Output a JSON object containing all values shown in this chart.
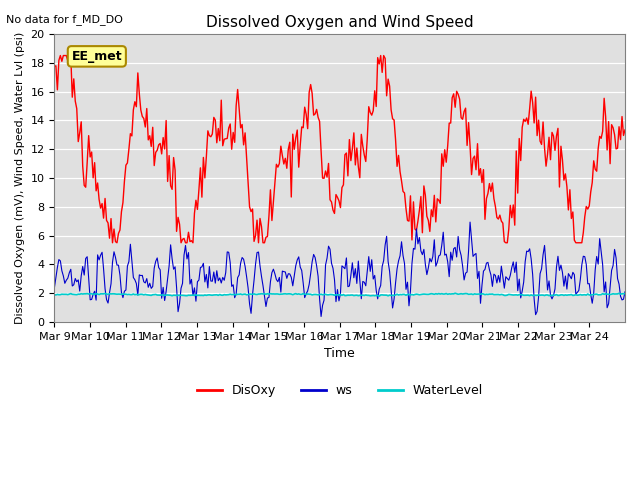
{
  "title": "Dissolved Oxygen and Wind Speed",
  "subtitle": "No data for f_MD_DO",
  "xlabel": "Time",
  "ylabel": "Dissolved Oxygen (mV), Wind Speed, Water Lvl (psi)",
  "ylim": [
    0,
    20
  ],
  "x_tick_labels": [
    "Mar 9",
    "Mar 10",
    "Mar 11",
    "Mar 12",
    "Mar 13",
    "Mar 14",
    "Mar 15",
    "Mar 16",
    "Mar 17",
    "Mar 18",
    "Mar 19",
    "Mar 20",
    "Mar 21",
    "Mar 22",
    "Mar 23",
    "Mar 24"
  ],
  "annotation": "EE_met",
  "plot_bg_color": "#e0e0e0",
  "disoxy_color": "#ff0000",
  "ws_color": "#0000cc",
  "waterlevel_color": "#00cccc",
  "legend_labels": [
    "DisOxy",
    "ws",
    "WaterLevel"
  ]
}
